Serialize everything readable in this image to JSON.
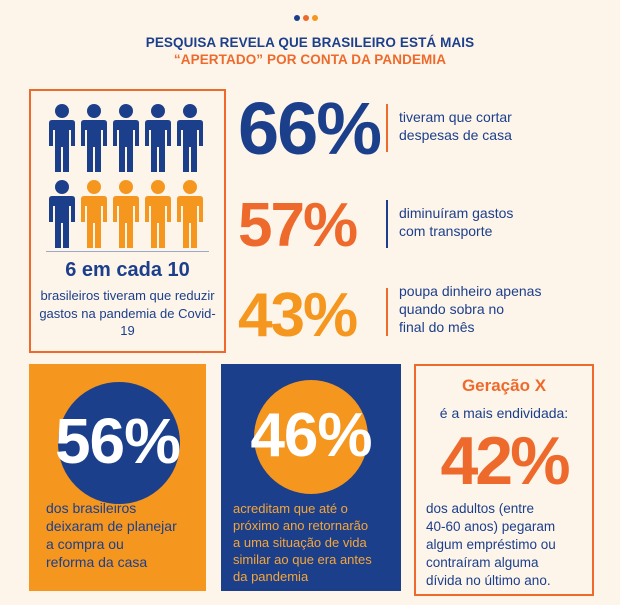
{
  "header": {
    "title_line1": "PESQUISA REVELA QUE BRASILEIRO ESTÁ MAIS",
    "title_line2": "“APERTADO” POR CONTA DA PANDEMIA",
    "dot_colors": [
      "#1c3f8c",
      "#ee6a2c",
      "#f5961e"
    ]
  },
  "colors": {
    "navy": "#1c3f8c",
    "orange": "#ee6a2c",
    "amber": "#f5961e",
    "background": "#fdf5ea"
  },
  "people_box": {
    "headline": "6 em cada 10",
    "description": "brasileiros tiveram que reduzir gastos na pandemia de Covid-19"
  },
  "stats": [
    {
      "value": "66%",
      "text_lines": [
        "tiveram que cortar",
        "despesas de casa"
      ],
      "color": "#1c3f8c",
      "bar_color": "#ee6a2c"
    },
    {
      "value": "57%",
      "text_lines": [
        "diminuíram gastos",
        "com transporte"
      ],
      "color": "#ee6a2c",
      "bar_color": "#1c3f8c"
    },
    {
      "value": "43%",
      "text_lines": [
        "poupa dinheiro apenas",
        "quando sobra no",
        "final do mês"
      ],
      "color": "#f5961e",
      "bar_color": "#ee6a2c"
    }
  ],
  "panels": [
    {
      "value": "56%",
      "text_lines": [
        "dos brasileiros",
        "deixaram de planejar",
        "a compra ou",
        "reforma da casa"
      ],
      "bg": "#f5961e",
      "circle": "#1c3f8c",
      "text_color": "#1c3f8c"
    },
    {
      "value": "46%",
      "text_lines": [
        "acreditam que até o",
        "próximo ano retornarão",
        "a uma situação de vida",
        "similar ao que era antes",
        "da pandemia"
      ],
      "bg": "#1c3f8c",
      "circle": "#f5961e",
      "text_color": "#f5a638"
    }
  ],
  "generation": {
    "title": "Geração X",
    "subtitle": "é a mais endividada:",
    "value": "42%",
    "text_lines": [
      "dos adultos (entre",
      "40-60 anos) pegaram",
      "algum empréstimo ou",
      "contraíram alguma",
      "dívida no último ano."
    ]
  },
  "chart_data": [
    {
      "type": "pictograph",
      "total": 10,
      "highlighted": 6,
      "highlight_color": "#1c3f8c",
      "other_color": "#f5961e"
    },
    {
      "type": "stat",
      "values": [
        66,
        57,
        43,
        56,
        46,
        42
      ]
    }
  ]
}
